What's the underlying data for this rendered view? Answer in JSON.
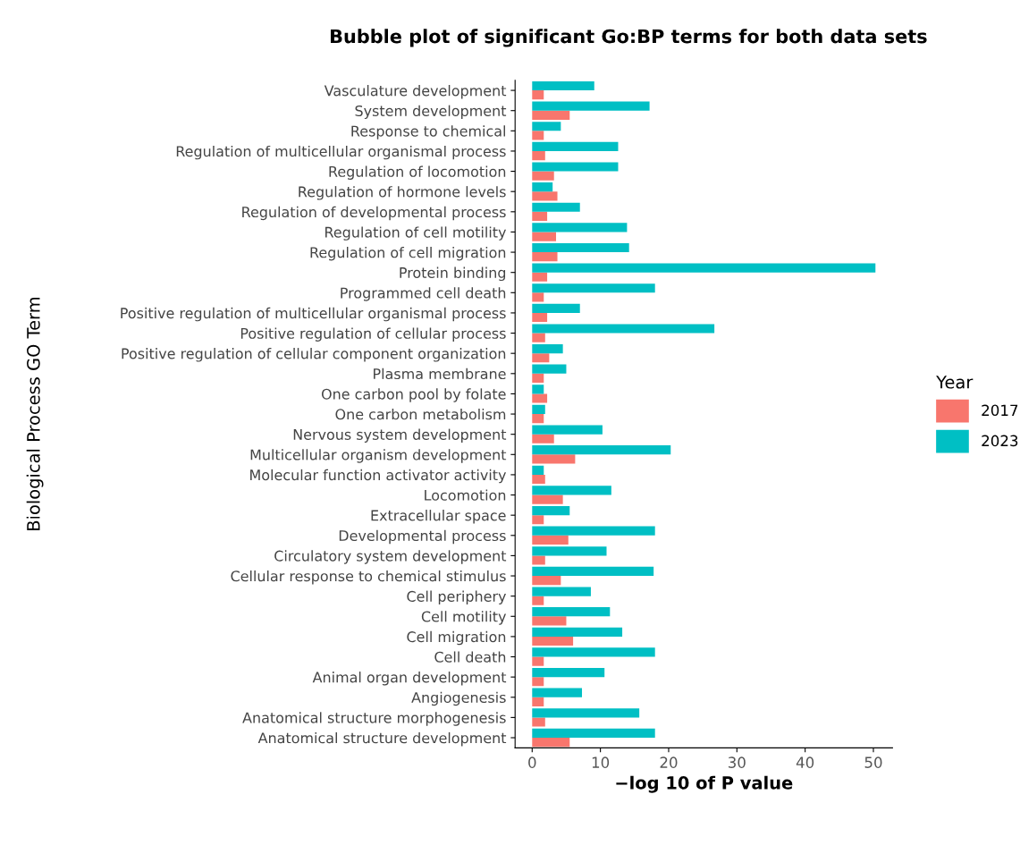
{
  "chart_data": {
    "type": "bar",
    "orientation": "horizontal",
    "title": "Bubble plot of significant Go:BP terms for both data sets",
    "xlabel": "−log 10 of P value",
    "ylabel": "Biological Process GO Term",
    "legend_title": "Year",
    "categories": [
      "Vasculature development",
      "System development",
      "Response to chemical",
      "Regulation of multicellular organismal process",
      "Regulation of locomotion",
      "Regulation of hormone levels",
      "Regulation of developmental process",
      "Regulation of cell motility",
      "Regulation of cell migration",
      "Protein binding",
      "Programmed cell death",
      "Positive regulation of multicellular organismal process",
      "Positive regulation of cellular process",
      "Positive regulation of cellular component organization",
      "Plasma membrane",
      "One carbon pool by folate",
      "One carbon metabolism",
      "Nervous system development",
      "Multicellular organism development",
      "Molecular function activator activity",
      "Locomotion",
      "Extracellular space",
      "Developmental process",
      "Circulatory system development",
      "Cellular response to chemical stimulus",
      "Cell periphery",
      "Cell motility",
      "Cell migration",
      "Cell death",
      "Animal organ development",
      "Angiogenesis",
      "Anatomical structure morphogenesis",
      "Anatomical structure development"
    ],
    "series": [
      {
        "name": "2017",
        "color": "#f8766d",
        "values": [
          1.7,
          5.5,
          1.7,
          1.9,
          3.2,
          3.7,
          2.2,
          3.5,
          3.7,
          2.2,
          1.7,
          2.2,
          1.9,
          2.5,
          1.7,
          2.2,
          1.7,
          3.2,
          6.3,
          1.9,
          4.5,
          1.7,
          5.3,
          1.9,
          4.2,
          1.7,
          5.0,
          6.0,
          1.7,
          1.7,
          1.7,
          1.9,
          5.5
        ]
      },
      {
        "name": "2023",
        "color": "#00bfc4",
        "values": [
          9.1,
          17.2,
          4.2,
          12.6,
          12.6,
          3.0,
          7.0,
          13.9,
          14.2,
          50.3,
          18.0,
          7.0,
          26.7,
          4.5,
          5.0,
          1.7,
          1.9,
          10.3,
          20.3,
          1.7,
          11.6,
          5.5,
          18.0,
          10.9,
          17.8,
          8.6,
          11.4,
          13.2,
          18.0,
          10.6,
          7.3,
          15.7,
          18.0
        ]
      }
    ],
    "xlim": [
      -2.5,
      52.8
    ],
    "xticks": [
      0,
      10,
      20,
      30,
      40,
      50
    ],
    "grid": false,
    "legend": "right"
  }
}
